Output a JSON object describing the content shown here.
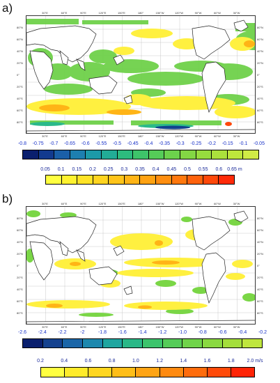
{
  "panels": [
    {
      "label": "a)",
      "lon_ticks": [
        "30°E",
        "60°E",
        "90°E",
        "120°E",
        "150°E",
        "180°",
        "150°W",
        "120°W",
        "90°W",
        "60°W",
        "30°W"
      ],
      "lat_ticks": [
        "80°N",
        "60°N",
        "40°N",
        "20°N",
        "0°",
        "20°S",
        "40°S",
        "60°S",
        "80°S"
      ],
      "colorbar_primary": {
        "labels": [
          "-0.8",
          "-0.75",
          "-0.7",
          "-0.65",
          "-0.6",
          "-0.55",
          "-0.5",
          "-0.45",
          "-0.4",
          "-0.35",
          "-0.3",
          "-0.25",
          "-0.2",
          "-0.15",
          "-0.1",
          "-0.05"
        ],
        "colors": [
          "#0a1f6e",
          "#123a8f",
          "#1a5fa8",
          "#1d7fb0",
          "#1c9aa8",
          "#22ac96",
          "#2dbb7e",
          "#3ec46a",
          "#55cc58",
          "#6cd24c",
          "#83d744",
          "#97dc3e",
          "#abe13c",
          "#bde63c",
          "#d0eb46"
        ],
        "unit": ""
      },
      "colorbar_secondary": {
        "labels": [
          "0.05",
          "0.1",
          "0.15",
          "0.2",
          "0.25",
          "0.3",
          "0.35",
          "0.4",
          "0.45",
          "0.5",
          "0.55",
          "0.6",
          "0.65 m"
        ],
        "colors": [
          "#ffff40",
          "#fff230",
          "#ffe326",
          "#ffd420",
          "#ffc41a",
          "#ffb416",
          "#ffa212",
          "#ff8e10",
          "#ff780e",
          "#ff620c",
          "#ff480a",
          "#ff2a08"
        ],
        "unit": "m"
      }
    },
    {
      "label": "b)",
      "lon_ticks": [
        "30°E",
        "60°E",
        "90°E",
        "120°E",
        "150°E",
        "180°",
        "150°W",
        "120°W",
        "90°W",
        "60°W",
        "30°W"
      ],
      "lat_ticks": [
        "80°N",
        "60°N",
        "40°N",
        "20°N",
        "0°",
        "20°S",
        "40°S",
        "60°S",
        "80°S"
      ],
      "colorbar_primary": {
        "labels": [
          "-2.6",
          "-2.4",
          "-2.2",
          "-2",
          "-1.8",
          "-1.6",
          "-1.4",
          "-1.2",
          "-1.0",
          "-0.8",
          "-0.6",
          "-0.4",
          "-0.2"
        ],
        "colors": [
          "#0a1f6e",
          "#15428f",
          "#1b66a8",
          "#1d88ae",
          "#1fa6a0",
          "#2ab887",
          "#3cc46c",
          "#55cc58",
          "#70d44a",
          "#8ad941",
          "#a4df3c",
          "#bfe63e"
        ],
        "unit": ""
      },
      "colorbar_secondary": {
        "labels": [
          "0.2",
          "0.4",
          "0.6",
          "0.8",
          "1.0",
          "1.2",
          "1.4",
          "1.6",
          "1.8",
          "2.0 m/s"
        ],
        "colors": [
          "#ffff40",
          "#ffeb2a",
          "#ffd620",
          "#ffbe18",
          "#ffa414",
          "#ff8a10",
          "#ff6c0c",
          "#ff4a0a",
          "#ff2406"
        ],
        "unit": "m/s"
      }
    }
  ]
}
